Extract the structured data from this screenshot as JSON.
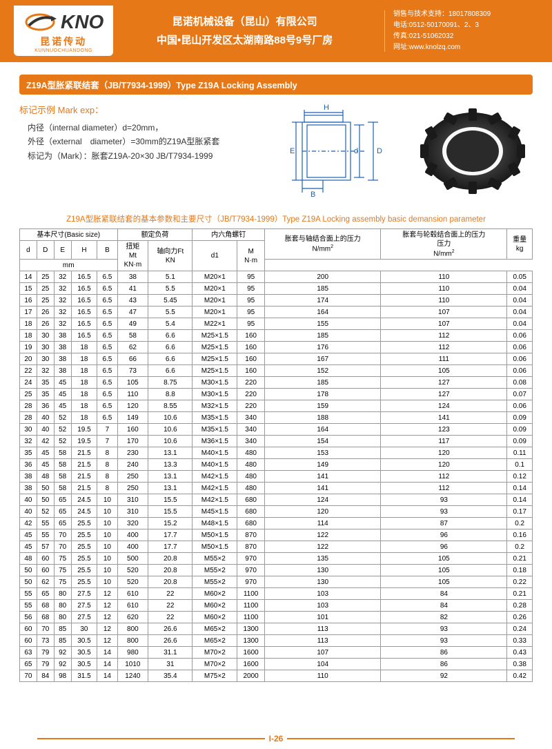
{
  "header": {
    "logo_text": "KNO",
    "logo_sub_cn": "昆诺传动",
    "logo_sub_py": "KUNNUOCHUANDONG",
    "company_cn": "昆诺机械设备（昆山）有限公司",
    "address_cn": "中国•昆山开发区太湖南路88号9号厂房",
    "contact_sales": "销售与技术支持：18017808309",
    "contact_tel": "电话:0512-50170091、2、3",
    "contact_fax": "传真:021-51062032",
    "contact_web": "网址:www.knolzq.com"
  },
  "title": "Z19A型胀紧联结套（JB/T7934-1999）Type Z19A Locking Assembly",
  "mark": {
    "heading": "标记示例 Mark exp：",
    "line1": "　内径（internal diameter）d=20mm，",
    "line2": "　外径（external　diameter）=30mm的Z19A型胀紧套",
    "line3": "　标记为（Mark）：胀套Z19A-20×30 JB/T7934-1999"
  },
  "diagram_labels": {
    "H": "H",
    "E": "E",
    "d": "d",
    "D": "D",
    "B": "B"
  },
  "table": {
    "caption": "Z19A型胀紧联结套的基本参数和主要尺寸（JB/T7934-1999）Type Z19A Locking assembly basic demansion  parameter",
    "header_groups": {
      "basic": "基本尺寸(Basic size)",
      "rated": "额定负荷",
      "hex": "内六角螺钉",
      "p_shaft": "胀套与轴结合面上的压力",
      "p_hub": "胀套与轮毂结合面上的压力",
      "weight": "重量"
    },
    "cols": [
      "d",
      "D",
      "E",
      "H",
      "B",
      "扭矩\nMt\nKN·m",
      "轴向力Ft\nKN",
      "d1",
      "M\nN·m",
      "N/mm²",
      "N/mm²",
      "kg"
    ],
    "unit_mm": "mm",
    "rows": [
      [
        "14",
        "25",
        "32",
        "16.5",
        "6.5",
        "38",
        "5.1",
        "M20×1",
        "95",
        "200",
        "110",
        "0.05"
      ],
      [
        "15",
        "25",
        "32",
        "16.5",
        "6.5",
        "41",
        "5.5",
        "M20×1",
        "95",
        "185",
        "110",
        "0.04"
      ],
      [
        "16",
        "25",
        "32",
        "16.5",
        "6.5",
        "43",
        "5.45",
        "M20×1",
        "95",
        "174",
        "110",
        "0.04"
      ],
      [
        "17",
        "26",
        "32",
        "16.5",
        "6.5",
        "47",
        "5.5",
        "M20×1",
        "95",
        "164",
        "107",
        "0.04"
      ],
      [
        "18",
        "26",
        "32",
        "16.5",
        "6.5",
        "49",
        "5.4",
        "M22×1",
        "95",
        "155",
        "107",
        "0.04"
      ],
      [
        "18",
        "30",
        "38",
        "16.5",
        "6.5",
        "58",
        "6.6",
        "M25×1.5",
        "160",
        "185",
        "112",
        "0.06"
      ],
      [
        "19",
        "30",
        "38",
        "18",
        "6.5",
        "62",
        "6.6",
        "M25×1.5",
        "160",
        "176",
        "112",
        "0.06"
      ],
      [
        "20",
        "30",
        "38",
        "18",
        "6.5",
        "66",
        "6.6",
        "M25×1.5",
        "160",
        "167",
        "111",
        "0.06"
      ],
      [
        "22",
        "32",
        "38",
        "18",
        "6.5",
        "73",
        "6.6",
        "M25×1.5",
        "160",
        "152",
        "105",
        "0.06"
      ],
      [
        "24",
        "35",
        "45",
        "18",
        "6.5",
        "105",
        "8.75",
        "M30×1.5",
        "220",
        "185",
        "127",
        "0.08"
      ],
      [
        "25",
        "35",
        "45",
        "18",
        "6.5",
        "110",
        "8.8",
        "M30×1.5",
        "220",
        "178",
        "127",
        "0.07"
      ],
      [
        "28",
        "36",
        "45",
        "18",
        "6.5",
        "120",
        "8.55",
        "M32×1.5",
        "220",
        "159",
        "124",
        "0.06"
      ],
      [
        "28",
        "40",
        "52",
        "18",
        "6.5",
        "149",
        "10.6",
        "M35×1.5",
        "340",
        "188",
        "141",
        "0.09"
      ],
      [
        "30",
        "40",
        "52",
        "19.5",
        "7",
        "160",
        "10.6",
        "M35×1.5",
        "340",
        "164",
        "123",
        "0.09"
      ],
      [
        "32",
        "42",
        "52",
        "19.5",
        "7",
        "170",
        "10.6",
        "M36×1.5",
        "340",
        "154",
        "117",
        "0.09"
      ],
      [
        "35",
        "45",
        "58",
        "21.5",
        "8",
        "230",
        "13.1",
        "M40×1.5",
        "480",
        "153",
        "120",
        "0.11"
      ],
      [
        "36",
        "45",
        "58",
        "21.5",
        "8",
        "240",
        "13.3",
        "M40×1.5",
        "480",
        "149",
        "120",
        "0.1"
      ],
      [
        "38",
        "48",
        "58",
        "21.5",
        "8",
        "250",
        "13.1",
        "M42×1.5",
        "480",
        "141",
        "112",
        "0.12"
      ],
      [
        "38",
        "50",
        "58",
        "21.5",
        "8",
        "250",
        "13.1",
        "M42×1.5",
        "480",
        "141",
        "112",
        "0.14"
      ],
      [
        "40",
        "50",
        "65",
        "24.5",
        "10",
        "310",
        "15.5",
        "M42×1.5",
        "680",
        "124",
        "93",
        "0.14"
      ],
      [
        "40",
        "52",
        "65",
        "24.5",
        "10",
        "310",
        "15.5",
        "M45×1.5",
        "680",
        "120",
        "93",
        "0.17"
      ],
      [
        "42",
        "55",
        "65",
        "25.5",
        "10",
        "320",
        "15.2",
        "M48×1.5",
        "680",
        "114",
        "87",
        "0.2"
      ],
      [
        "45",
        "55",
        "70",
        "25.5",
        "10",
        "400",
        "17.7",
        "M50×1.5",
        "870",
        "122",
        "96",
        "0.16"
      ],
      [
        "45",
        "57",
        "70",
        "25.5",
        "10",
        "400",
        "17.7",
        "M50×1.5",
        "870",
        "122",
        "96",
        "0.2"
      ],
      [
        "48",
        "60",
        "75",
        "25.5",
        "10",
        "500",
        "20.8",
        "M55×2",
        "970",
        "135",
        "105",
        "0.21"
      ],
      [
        "50",
        "60",
        "75",
        "25.5",
        "10",
        "520",
        "20.8",
        "M55×2",
        "970",
        "130",
        "105",
        "0.18"
      ],
      [
        "50",
        "62",
        "75",
        "25.5",
        "10",
        "520",
        "20.8",
        "M55×2",
        "970",
        "130",
        "105",
        "0.22"
      ],
      [
        "55",
        "65",
        "80",
        "27.5",
        "12",
        "610",
        "22",
        "M60×2",
        "1100",
        "103",
        "84",
        "0.21"
      ],
      [
        "55",
        "68",
        "80",
        "27.5",
        "12",
        "610",
        "22",
        "M60×2",
        "1100",
        "103",
        "84",
        "0.28"
      ],
      [
        "56",
        "68",
        "80",
        "27.5",
        "12",
        "620",
        "22",
        "M60×2",
        "1100",
        "101",
        "82",
        "0.26"
      ],
      [
        "60",
        "70",
        "85",
        "30",
        "12",
        "800",
        "26.6",
        "M65×2",
        "1300",
        "113",
        "93",
        "0.24"
      ],
      [
        "60",
        "73",
        "85",
        "30.5",
        "12",
        "800",
        "26.6",
        "M65×2",
        "1300",
        "113",
        "93",
        "0.33"
      ],
      [
        "63",
        "79",
        "92",
        "30.5",
        "14",
        "980",
        "31.1",
        "M70×2",
        "1600",
        "107",
        "86",
        "0.43"
      ],
      [
        "65",
        "79",
        "92",
        "30.5",
        "14",
        "1010",
        "31",
        "M70×2",
        "1600",
        "104",
        "86",
        "0.38"
      ],
      [
        "70",
        "84",
        "98",
        "31.5",
        "14",
        "1240",
        "35.4",
        "M75×2",
        "2000",
        "110",
        "92",
        "0.42"
      ]
    ]
  },
  "footer_page": "I-26",
  "colors": {
    "accent": "#e67817",
    "border": "#999999",
    "text": "#333333"
  }
}
